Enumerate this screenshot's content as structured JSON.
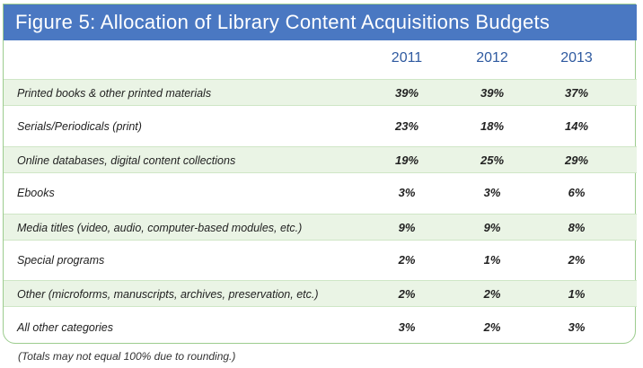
{
  "title": "Figure 5:  Allocation of Library Content Acquisitions Budgets",
  "columns": [
    "2011",
    "2012",
    "2013"
  ],
  "rows": [
    {
      "label": "Printed books & other printed materials",
      "values": [
        "39%",
        "39%",
        "37%"
      ]
    },
    {
      "label": "Serials/Periodicals (print)",
      "values": [
        "23%",
        "18%",
        "14%"
      ]
    },
    {
      "label": "Online databases, digital content collections",
      "values": [
        "19%",
        "25%",
        "29%"
      ]
    },
    {
      "label": "Ebooks",
      "values": [
        "3%",
        "3%",
        "6%"
      ]
    },
    {
      "label": "Media titles (video, audio, computer-based  modules, etc.)",
      "values": [
        "9%",
        "9%",
        "8%"
      ]
    },
    {
      "label": "Special programs",
      "values": [
        "2%",
        "1%",
        "2%"
      ]
    },
    {
      "label": "Other (microforms, manuscripts, archives, preservation, etc.)",
      "values": [
        "2%",
        "2%",
        "1%"
      ]
    },
    {
      "label": "All other categories",
      "values": [
        "3%",
        "2%",
        "3%"
      ]
    }
  ],
  "footnote": "(Totals may not equal 100% due to rounding.)"
}
